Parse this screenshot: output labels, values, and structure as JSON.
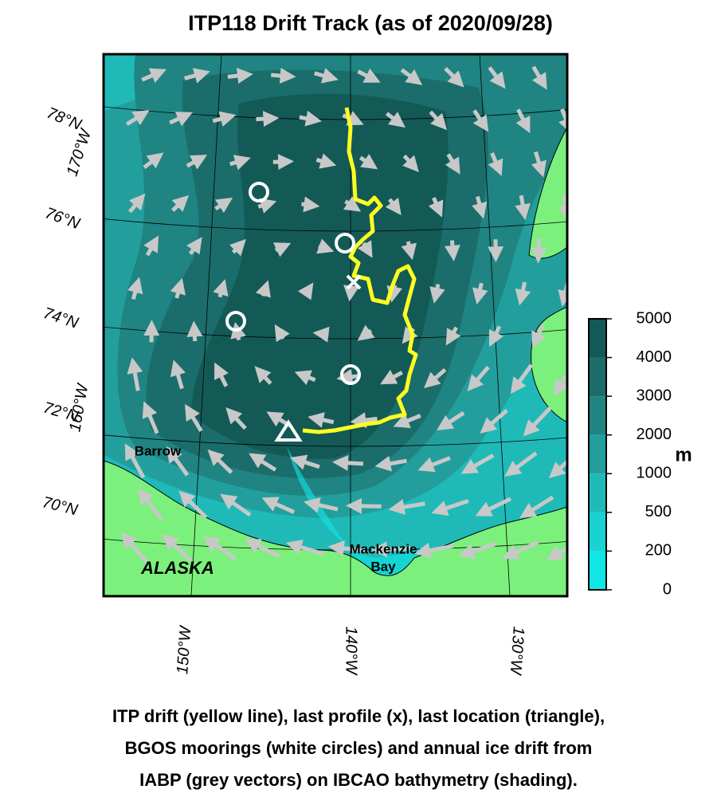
{
  "title": "ITP118 Drift Track (as of 2020/09/28)",
  "latitude_labels": [
    "78°N",
    "76°N",
    "74°N",
    "72°N",
    "70°N"
  ],
  "longitude_labels": {
    "left": [
      "170°W",
      "160°W"
    ],
    "bottom": [
      "150°W",
      "140°W",
      "130°W"
    ]
  },
  "places": {
    "barrow": "Barrow",
    "alaska": "ALASKA",
    "mackenzie": [
      "Mackenzie",
      "Bay"
    ]
  },
  "colorbar": {
    "unit": "m",
    "ticks": [
      0,
      200,
      500,
      1000,
      2000,
      3000,
      4000,
      5000
    ],
    "colors": [
      "#10e6e6",
      "#19d2d1",
      "#1fbab8",
      "#229f9d",
      "#1f8482",
      "#1a6d6a",
      "#135a57"
    ]
  },
  "caption": [
    "ITP drift (yellow line), last profile (x), last location (triangle),",
    "BGOS moorings (white circles) and annual ice drift from",
    "IABP (grey vectors) on IBCAO bathymetry (shading)."
  ]
}
